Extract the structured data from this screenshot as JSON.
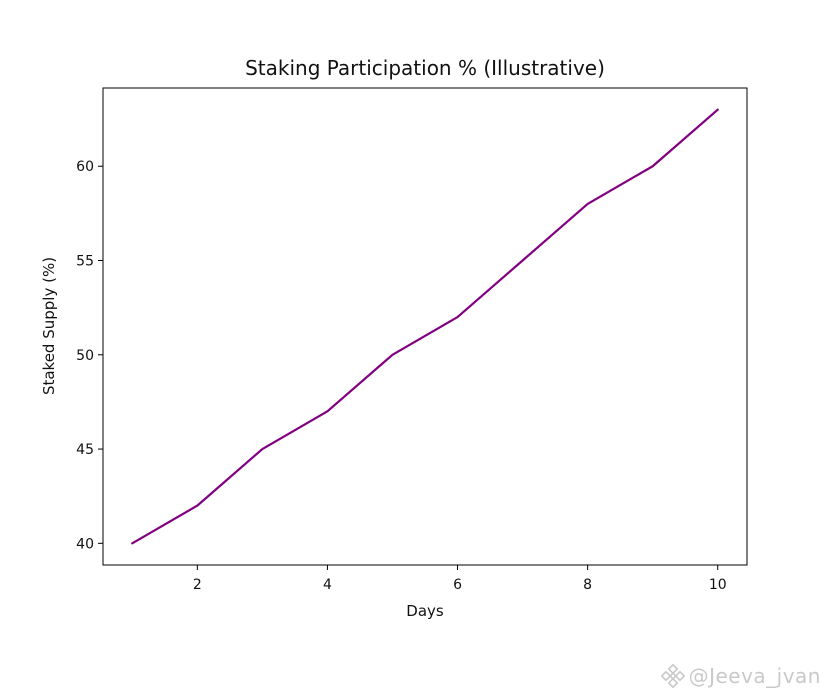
{
  "chart_data": {
    "type": "line",
    "title": "Staking Participation % (Illustrative)",
    "xlabel": "Days",
    "ylabel": "Staked Supply (%)",
    "x": [
      1,
      2,
      3,
      4,
      5,
      6,
      7,
      8,
      9,
      10
    ],
    "series": [
      {
        "values": [
          40,
          42,
          45,
          47,
          50,
          52,
          55,
          58,
          60,
          63
        ],
        "color": "#800080"
      }
    ],
    "xlim": [
      0.55,
      10.45
    ],
    "ylim": [
      38.85,
      64.15
    ],
    "xticks": [
      2,
      4,
      6,
      8,
      10
    ],
    "yticks": [
      40,
      45,
      50,
      55,
      60
    ],
    "grid": false,
    "legend": "none"
  },
  "watermark": {
    "text": "@Jeeva_jvan",
    "icon": "binance-logo-icon"
  }
}
